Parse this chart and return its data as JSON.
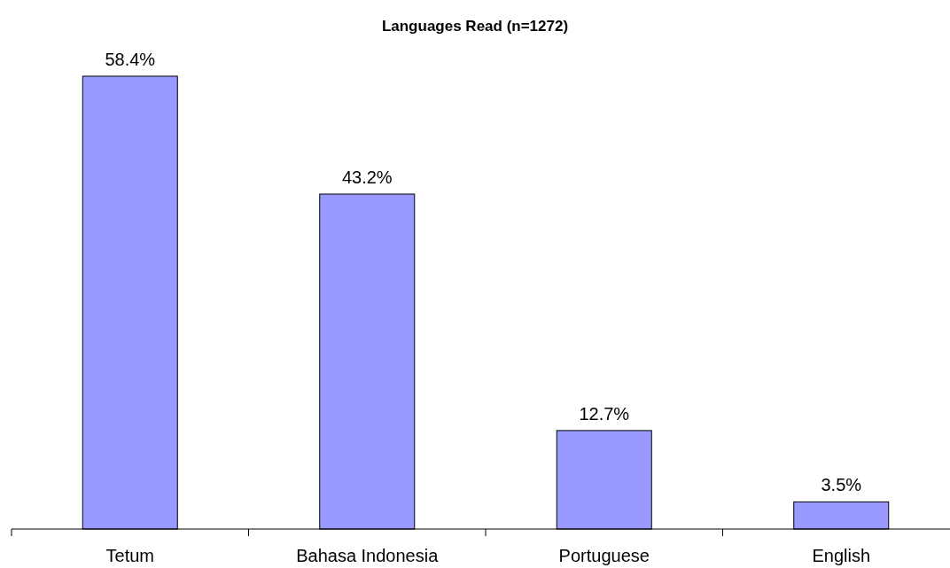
{
  "chart_data": {
    "type": "bar",
    "title": "Languages Read (n=1272)",
    "categories": [
      "Tetum",
      "Bahasa Indonesia",
      "Portuguese",
      "English"
    ],
    "values": [
      58.4,
      43.2,
      12.7,
      3.5
    ],
    "value_labels": [
      "58.4%",
      "43.2%",
      "12.7%",
      "3.5%"
    ],
    "color": "#9999ff",
    "grid": false
  }
}
